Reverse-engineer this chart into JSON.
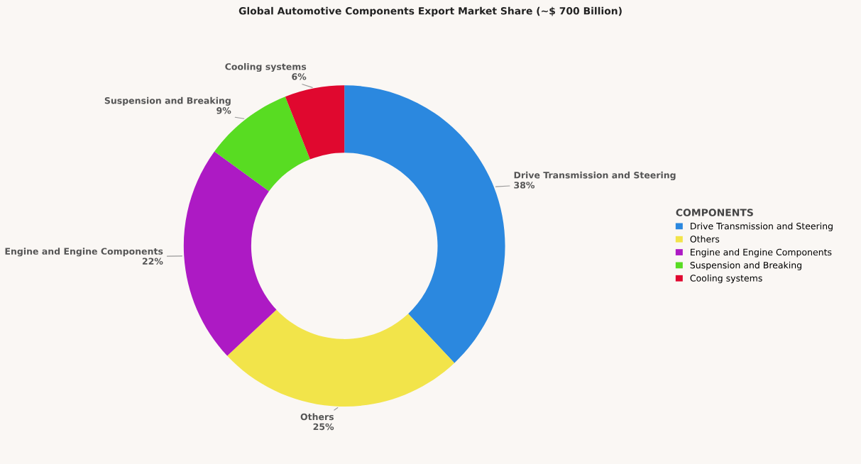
{
  "chart_data": {
    "type": "donut",
    "title": "Global Automotive Components Export Market Share (~$ 700 Billion)",
    "categories": [
      "Drive Transmission and Steering",
      "Others",
      "Engine and Engine Components",
      "Suspension and Breaking",
      "Cooling systems"
    ],
    "values": [
      38,
      25,
      22,
      9,
      6
    ],
    "colors": [
      "#2b88df",
      "#f2e44a",
      "#ad1ac4",
      "#58dc22",
      "#e0082f"
    ],
    "value_labels": [
      "38%",
      "25%",
      "22%",
      "9%",
      "6%"
    ],
    "legend_title": "COMPONENTS",
    "legend": "right"
  }
}
